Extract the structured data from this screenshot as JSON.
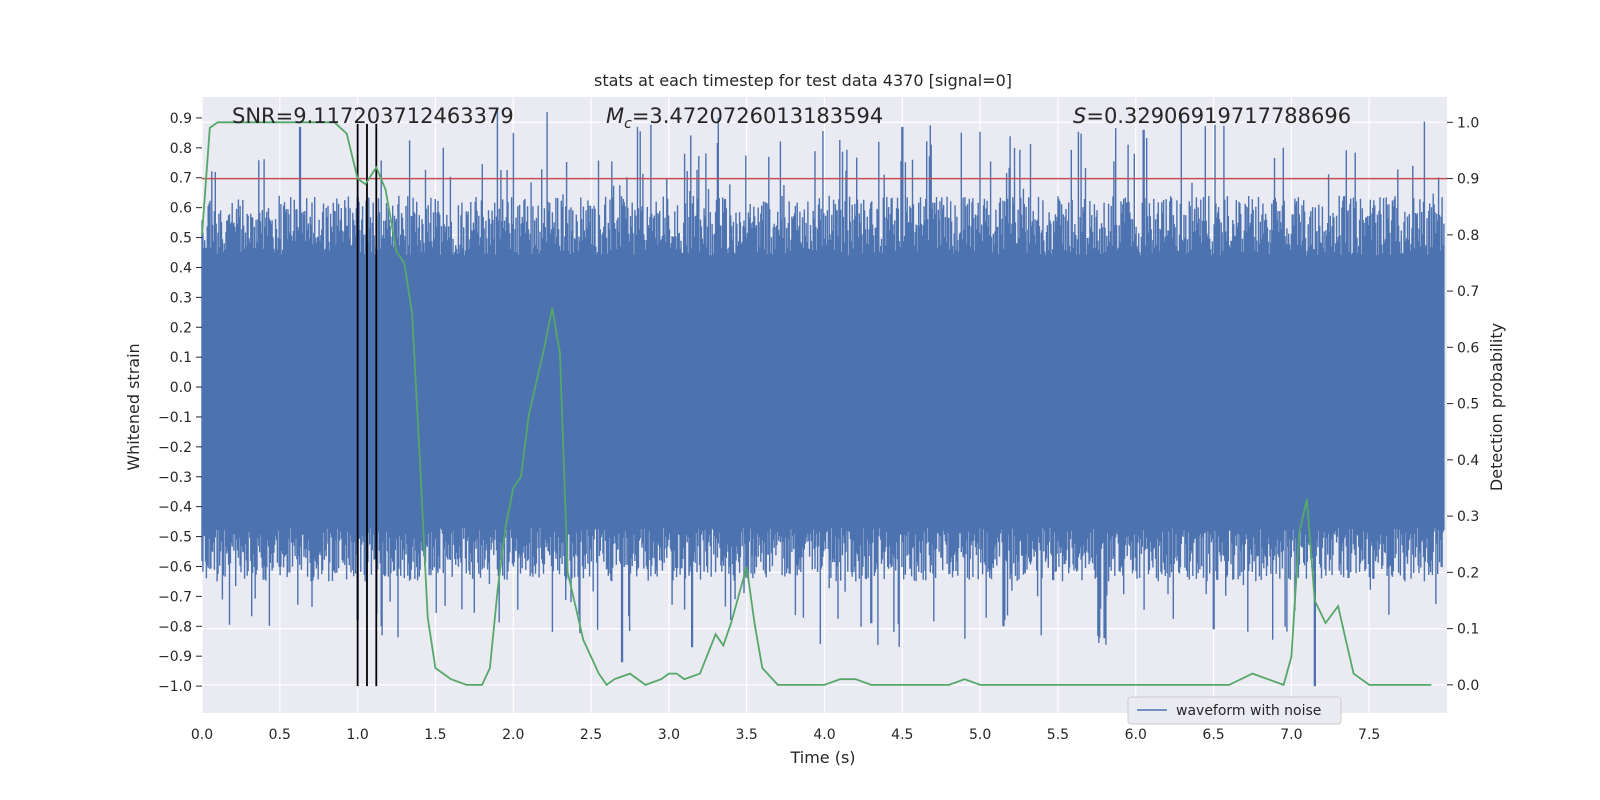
{
  "chart_data": {
    "type": "line",
    "title": "stats at each timestep for test data 4370 [signal=0]",
    "xlabel": "Time (s)",
    "ylabel_left": "Whitened strain",
    "ylabel_right": "Detection probability",
    "xlim": [
      0.0,
      8.0
    ],
    "ylim_left": [
      -1.09,
      0.97
    ],
    "ylim_right": [
      -0.05,
      1.045
    ],
    "x_ticks": [
      "0.0",
      "0.5",
      "1.0",
      "1.5",
      "2.0",
      "2.5",
      "3.0",
      "3.5",
      "4.0",
      "4.5",
      "5.0",
      "5.5",
      "6.0",
      "6.5",
      "7.0",
      "7.5"
    ],
    "y_left_ticks": [
      "0.9",
      "0.8",
      "0.7",
      "0.6",
      "0.5",
      "0.4",
      "0.3",
      "0.2",
      "0.1",
      "0.0",
      "-0.1",
      "-0.2",
      "-0.3",
      "-0.4",
      "-0.5",
      "-0.6",
      "-0.7",
      "-0.8",
      "-0.9",
      "-1.0"
    ],
    "y_right_ticks": [
      "1.0",
      "0.9",
      "0.8",
      "0.7",
      "0.6",
      "0.5",
      "0.4",
      "0.3",
      "0.2",
      "0.1",
      "0.0"
    ],
    "grid": true,
    "legend": {
      "label": "waveform with noise",
      "location": "lower-right"
    },
    "annotations": {
      "snr_text": "SNR=9.117203712463379",
      "mc_symbol": "M",
      "mc_sub": "c",
      "mc_text": "=3.4720726013183594",
      "s_symbol": "S",
      "s_text": "=0.32906919717788696"
    },
    "threshold_probability": 0.9,
    "vertical_markers_s": [
      1.0,
      1.06,
      1.12
    ],
    "vertical_marker_range": [
      -1.0,
      0.88
    ],
    "colors": {
      "waveform": "#4c72b0",
      "probability": "#55a868",
      "threshold": "#c44e52",
      "markers": "#000000",
      "plot_bg": "#eaeaf2"
    },
    "series": [
      {
        "name": "waveform with noise",
        "axis": "left",
        "band_core": [
          -0.43,
          0.32
        ],
        "notable_peaks": [
          {
            "t": 0.63,
            "v": 0.87
          },
          {
            "t": 2.0,
            "v": 0.85
          },
          {
            "t": 2.8,
            "v": 0.87
          },
          {
            "t": 3.1,
            "v": 0.78
          },
          {
            "t": 4.5,
            "v": 0.87
          },
          {
            "t": 4.35,
            "v": 0.82
          },
          {
            "t": 6.05,
            "v": 0.86
          },
          {
            "t": 1.55,
            "v": 0.8
          },
          {
            "t": 6.95,
            "v": 0.8
          }
        ],
        "notable_troughs": [
          {
            "t": 7.15,
            "v": -1.0
          },
          {
            "t": 2.7,
            "v": -0.92
          },
          {
            "t": 5.8,
            "v": -0.84
          },
          {
            "t": 3.15,
            "v": -0.87
          },
          {
            "t": 6.5,
            "v": -0.81
          },
          {
            "t": 1.15,
            "v": -0.8
          },
          {
            "t": 5.15,
            "v": -0.8
          },
          {
            "t": 4.3,
            "v": -0.79
          },
          {
            "t": 1.0,
            "v": -0.78
          }
        ]
      },
      {
        "name": "detection probability",
        "axis": "right",
        "points": [
          [
            0.0,
            0.8
          ],
          [
            0.05,
            0.99
          ],
          [
            0.1,
            1.0
          ],
          [
            0.3,
            1.0
          ],
          [
            0.5,
            1.0
          ],
          [
            0.7,
            1.0
          ],
          [
            0.85,
            1.0
          ],
          [
            0.93,
            0.98
          ],
          [
            1.0,
            0.9
          ],
          [
            1.05,
            0.89
          ],
          [
            1.12,
            0.92
          ],
          [
            1.18,
            0.88
          ],
          [
            1.25,
            0.77
          ],
          [
            1.3,
            0.75
          ],
          [
            1.35,
            0.66
          ],
          [
            1.4,
            0.4
          ],
          [
            1.45,
            0.12
          ],
          [
            1.5,
            0.03
          ],
          [
            1.55,
            0.02
          ],
          [
            1.6,
            0.01
          ],
          [
            1.7,
            0.0
          ],
          [
            1.8,
            0.0
          ],
          [
            1.85,
            0.03
          ],
          [
            1.9,
            0.17
          ],
          [
            1.95,
            0.28
          ],
          [
            2.0,
            0.35
          ],
          [
            2.05,
            0.37
          ],
          [
            2.1,
            0.48
          ],
          [
            2.2,
            0.6
          ],
          [
            2.25,
            0.67
          ],
          [
            2.3,
            0.59
          ],
          [
            2.35,
            0.2
          ],
          [
            2.45,
            0.08
          ],
          [
            2.5,
            0.05
          ],
          [
            2.55,
            0.02
          ],
          [
            2.6,
            0.0
          ],
          [
            2.65,
            0.01
          ],
          [
            2.75,
            0.02
          ],
          [
            2.85,
            0.0
          ],
          [
            2.95,
            0.01
          ],
          [
            3.0,
            0.02
          ],
          [
            3.05,
            0.02
          ],
          [
            3.1,
            0.01
          ],
          [
            3.2,
            0.02
          ],
          [
            3.3,
            0.09
          ],
          [
            3.35,
            0.07
          ],
          [
            3.4,
            0.11
          ],
          [
            3.5,
            0.21
          ],
          [
            3.55,
            0.11
          ],
          [
            3.6,
            0.03
          ],
          [
            3.7,
            0.0
          ],
          [
            3.9,
            0.0
          ],
          [
            4.0,
            0.0
          ],
          [
            4.1,
            0.01
          ],
          [
            4.2,
            0.01
          ],
          [
            4.3,
            0.0
          ],
          [
            4.4,
            0.0
          ],
          [
            4.5,
            0.0
          ],
          [
            4.6,
            0.0
          ],
          [
            4.8,
            0.0
          ],
          [
            4.9,
            0.01
          ],
          [
            5.0,
            0.0
          ],
          [
            5.2,
            0.0
          ],
          [
            5.4,
            0.0
          ],
          [
            5.6,
            0.0
          ],
          [
            6.0,
            0.0
          ],
          [
            6.4,
            0.0
          ],
          [
            6.6,
            0.0
          ],
          [
            6.75,
            0.02
          ],
          [
            6.85,
            0.01
          ],
          [
            6.95,
            0.0
          ],
          [
            7.0,
            0.05
          ],
          [
            7.05,
            0.27
          ],
          [
            7.1,
            0.33
          ],
          [
            7.15,
            0.15
          ],
          [
            7.22,
            0.11
          ],
          [
            7.3,
            0.14
          ],
          [
            7.35,
            0.08
          ],
          [
            7.4,
            0.02
          ],
          [
            7.5,
            0.0
          ],
          [
            7.9,
            0.0
          ]
        ]
      }
    ]
  }
}
